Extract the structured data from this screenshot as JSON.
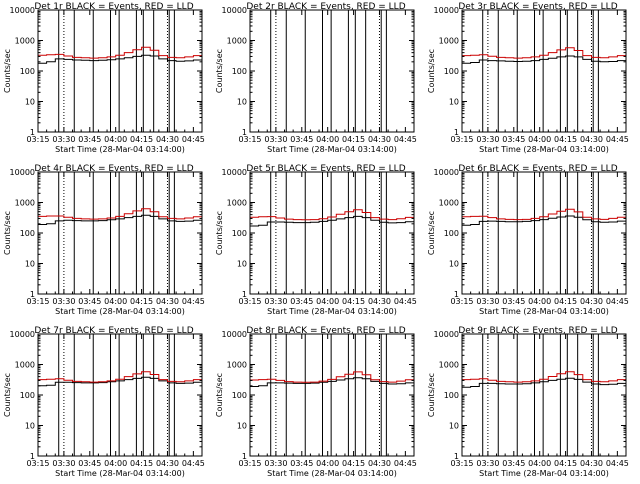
{
  "figure": {
    "x_ticks": [
      "03:15",
      "03:30",
      "03:45",
      "04:00",
      "04:15",
      "04:30",
      "04:45"
    ],
    "y_ticks": [
      "1",
      "10",
      "100",
      "1000",
      "10000"
    ],
    "colors": {
      "events": "#000000",
      "lld": "#cc0000",
      "axis": "#000000"
    }
  },
  "chart_data": [
    {
      "type": "line",
      "panel": "det1r",
      "title": "Det 1r BLACK = Events, RED = LLD",
      "xlabel": "Start Time (28-Mar-04 03:14:00)",
      "ylabel": "Counts/sec",
      "yscale": "log",
      "ylim": [
        1,
        10000
      ],
      "xlim": [
        "03:15",
        "04:50"
      ],
      "x": [
        "03:15",
        "03:20",
        "03:25",
        "03:30",
        "03:35",
        "03:40",
        "03:45",
        "03:50",
        "03:55",
        "04:00",
        "04:05",
        "04:10",
        "04:15",
        "04:20",
        "04:25",
        "04:30",
        "04:35",
        "04:40",
        "04:45",
        "04:50"
      ],
      "series": [
        {
          "name": "Events",
          "color": "#000000",
          "values": [
            180,
            200,
            250,
            240,
            230,
            225,
            220,
            225,
            235,
            250,
            270,
            300,
            330,
            310,
            250,
            220,
            210,
            215,
            230,
            240
          ]
        },
        {
          "name": "LLD",
          "color": "#cc0000",
          "values": [
            330,
            340,
            350,
            310,
            280,
            270,
            265,
            270,
            290,
            330,
            400,
            500,
            600,
            480,
            320,
            280,
            270,
            290,
            320,
            350
          ]
        }
      ],
      "dotted_lines": [
        "03:30",
        "04:30"
      ],
      "gap_lines": [
        "03:27",
        "03:36",
        "03:47",
        "03:57",
        "04:02",
        "04:12",
        "04:16",
        "04:22",
        "04:31",
        "04:34"
      ]
    },
    {
      "type": "line",
      "panel": "det2r",
      "title": "Det 2r BLACK = Events, RED = LLD",
      "xlabel": "Start Time (28-Mar-04 03:14:00)",
      "ylabel": "Counts/sec",
      "yscale": "log",
      "ylim": [
        1,
        10000
      ],
      "xlim": [
        "03:15",
        "04:50"
      ],
      "x": [
        "03:15",
        "03:20",
        "03:25",
        "03:30",
        "03:35",
        "03:40",
        "03:45",
        "03:50",
        "03:55",
        "04:00",
        "04:05",
        "04:10",
        "04:15",
        "04:20",
        "04:25",
        "04:30",
        "04:35",
        "04:40",
        "04:45",
        "04:50"
      ],
      "series": [
        {
          "name": "Events",
          "color": "#000000",
          "values": [
            null,
            null,
            null,
            null,
            null,
            null,
            null,
            null,
            null,
            null,
            null,
            null,
            null,
            null,
            null,
            null,
            null,
            null,
            null,
            null
          ]
        },
        {
          "name": "LLD",
          "color": "#cc0000",
          "values": [
            null,
            null,
            null,
            null,
            null,
            null,
            null,
            null,
            null,
            null,
            null,
            null,
            null,
            null,
            null,
            null,
            null,
            null,
            null,
            null
          ]
        }
      ],
      "dotted_lines": [
        "03:30",
        "04:30"
      ],
      "gap_lines": [
        "03:27",
        "03:36",
        "03:47",
        "03:57",
        "04:02",
        "04:12",
        "04:16",
        "04:22",
        "04:31",
        "04:34"
      ]
    },
    {
      "type": "line",
      "panel": "det3r",
      "title": "Det 3r BLACK = Events, RED = LLD",
      "xlabel": "Start Time (28-Mar-04 03:14:00)",
      "ylabel": "Counts/sec",
      "yscale": "log",
      "ylim": [
        1,
        10000
      ],
      "xlim": [
        "03:15",
        "04:50"
      ],
      "x": [
        "03:15",
        "03:20",
        "03:25",
        "03:30",
        "03:35",
        "03:40",
        "03:45",
        "03:50",
        "03:55",
        "04:00",
        "04:05",
        "04:10",
        "04:15",
        "04:20",
        "04:25",
        "04:30",
        "04:35",
        "04:40",
        "04:45",
        "04:50"
      ],
      "series": [
        {
          "name": "Events",
          "color": "#000000",
          "values": [
            180,
            190,
            230,
            220,
            215,
            210,
            205,
            210,
            220,
            240,
            260,
            290,
            310,
            290,
            240,
            210,
            200,
            205,
            220,
            230
          ]
        },
        {
          "name": "LLD",
          "color": "#cc0000",
          "values": [
            320,
            330,
            340,
            305,
            280,
            270,
            265,
            270,
            290,
            330,
            400,
            490,
            580,
            470,
            320,
            280,
            270,
            290,
            320,
            340
          ]
        }
      ],
      "dotted_lines": [
        "03:30",
        "04:30"
      ],
      "gap_lines": [
        "03:27",
        "03:36",
        "03:47",
        "03:57",
        "04:02",
        "04:12",
        "04:16",
        "04:22",
        "04:31",
        "04:34"
      ]
    },
    {
      "type": "line",
      "panel": "det4r",
      "title": "Det 4r BLACK = Events, RED = LLD",
      "xlabel": "Start Time (28-Mar-04 03:14:00)",
      "ylabel": "Counts/sec",
      "yscale": "log",
      "ylim": [
        1,
        10000
      ],
      "xlim": [
        "03:15",
        "04:50"
      ],
      "x": [
        "03:15",
        "03:20",
        "03:25",
        "03:30",
        "03:35",
        "03:40",
        "03:45",
        "03:50",
        "03:55",
        "04:00",
        "04:05",
        "04:10",
        "04:15",
        "04:20",
        "04:25",
        "04:30",
        "04:35",
        "04:40",
        "04:45",
        "04:50"
      ],
      "series": [
        {
          "name": "Events",
          "color": "#000000",
          "values": [
            190,
            200,
            250,
            260,
            255,
            250,
            250,
            255,
            270,
            290,
            320,
            350,
            380,
            350,
            290,
            250,
            240,
            245,
            260,
            270
          ]
        },
        {
          "name": "LLD",
          "color": "#cc0000",
          "values": [
            350,
            360,
            360,
            330,
            300,
            290,
            285,
            290,
            310,
            350,
            430,
            530,
            620,
            500,
            340,
            300,
            290,
            310,
            340,
            360
          ]
        }
      ],
      "dotted_lines": [
        "03:30",
        "04:30"
      ],
      "gap_lines": [
        "03:27",
        "03:36",
        "03:47",
        "03:57",
        "04:02",
        "04:12",
        "04:16",
        "04:22",
        "04:31",
        "04:34"
      ]
    },
    {
      "type": "line",
      "panel": "det5r",
      "title": "Det 5r BLACK = Events, RED = LLD",
      "xlabel": "Start Time (28-Mar-04 03:14:00)",
      "ylabel": "Counts/sec",
      "yscale": "log",
      "ylim": [
        1,
        10000
      ],
      "xlim": [
        "03:15",
        "04:50"
      ],
      "x": [
        "03:15",
        "03:20",
        "03:25",
        "03:30",
        "03:35",
        "03:40",
        "03:45",
        "03:50",
        "03:55",
        "04:00",
        "04:05",
        "04:10",
        "04:15",
        "04:20",
        "04:25",
        "04:30",
        "04:35",
        "04:40",
        "04:45",
        "04:50"
      ],
      "series": [
        {
          "name": "Events",
          "color": "#000000",
          "values": [
            170,
            180,
            230,
            230,
            225,
            220,
            220,
            225,
            240,
            260,
            290,
            320,
            350,
            320,
            260,
            225,
            215,
            220,
            235,
            245
          ]
        },
        {
          "name": "LLD",
          "color": "#cc0000",
          "values": [
            330,
            340,
            345,
            310,
            285,
            275,
            270,
            275,
            295,
            335,
            410,
            500,
            580,
            470,
            320,
            285,
            275,
            295,
            325,
            345
          ]
        }
      ],
      "dotted_lines": [
        "03:30",
        "04:30"
      ],
      "gap_lines": [
        "03:27",
        "03:36",
        "03:47",
        "03:57",
        "04:02",
        "04:12",
        "04:16",
        "04:22",
        "04:31",
        "04:34"
      ]
    },
    {
      "type": "line",
      "panel": "det6r",
      "title": "Det 6r BLACK = Events, RED = LLD",
      "xlabel": "Start Time (28-Mar-04 03:14:00)",
      "ylabel": "Counts/sec",
      "yscale": "log",
      "ylim": [
        1,
        10000
      ],
      "xlim": [
        "03:15",
        "04:50"
      ],
      "x": [
        "03:15",
        "03:20",
        "03:25",
        "03:30",
        "03:35",
        "03:40",
        "03:45",
        "03:50",
        "03:55",
        "04:00",
        "04:05",
        "04:10",
        "04:15",
        "04:20",
        "04:25",
        "04:30",
        "04:35",
        "04:40",
        "04:45",
        "04:50"
      ],
      "series": [
        {
          "name": "Events",
          "color": "#000000",
          "values": [
            180,
            190,
            240,
            245,
            240,
            235,
            235,
            240,
            255,
            275,
            305,
            335,
            360,
            330,
            270,
            235,
            225,
            230,
            245,
            255
          ]
        },
        {
          "name": "LLD",
          "color": "#cc0000",
          "values": [
            340,
            350,
            355,
            320,
            290,
            280,
            275,
            280,
            300,
            340,
            420,
            520,
            600,
            490,
            330,
            290,
            280,
            300,
            330,
            350
          ]
        }
      ],
      "dotted_lines": [
        "03:30",
        "04:30"
      ],
      "gap_lines": [
        "03:27",
        "03:36",
        "03:47",
        "03:57",
        "04:02",
        "04:12",
        "04:16",
        "04:22",
        "04:31",
        "04:34"
      ]
    },
    {
      "type": "line",
      "panel": "det7r",
      "title": "Det 7r BLACK = Events, RED = LLD",
      "xlabel": "Start Time (28-Mar-04 03:14:00)",
      "ylabel": "Counts/sec",
      "yscale": "log",
      "ylim": [
        1,
        10000
      ],
      "xlim": [
        "03:15",
        "04:50"
      ],
      "x": [
        "03:15",
        "03:20",
        "03:25",
        "03:30",
        "03:35",
        "03:40",
        "03:45",
        "03:50",
        "03:55",
        "04:00",
        "04:05",
        "04:10",
        "04:15",
        "04:20",
        "04:25",
        "04:30",
        "04:35",
        "04:40",
        "04:45",
        "04:50"
      ],
      "series": [
        {
          "name": "Events",
          "color": "#000000",
          "values": [
            200,
            210,
            260,
            260,
            255,
            250,
            250,
            255,
            270,
            290,
            320,
            350,
            380,
            350,
            290,
            250,
            240,
            245,
            260,
            270
          ]
        },
        {
          "name": "LLD",
          "color": "#cc0000",
          "values": [
            320,
            330,
            340,
            305,
            280,
            270,
            265,
            270,
            290,
            330,
            400,
            490,
            580,
            470,
            320,
            280,
            270,
            290,
            320,
            340
          ]
        }
      ],
      "dotted_lines": [
        "03:30",
        "04:30"
      ],
      "gap_lines": [
        "03:27",
        "03:36",
        "03:47",
        "03:57",
        "04:02",
        "04:12",
        "04:16",
        "04:22",
        "04:31",
        "04:34"
      ]
    },
    {
      "type": "line",
      "panel": "det8r",
      "title": "Det 8r BLACK = Events, RED = LLD",
      "xlabel": "Start Time (28-Mar-04 03:14:00)",
      "ylabel": "Counts/sec",
      "yscale": "log",
      "ylim": [
        1,
        10000
      ],
      "xlim": [
        "03:15",
        "04:50"
      ],
      "x": [
        "03:15",
        "03:20",
        "03:25",
        "03:30",
        "03:35",
        "03:40",
        "03:45",
        "03:50",
        "03:55",
        "04:00",
        "04:05",
        "04:10",
        "04:15",
        "04:20",
        "04:25",
        "04:30",
        "04:35",
        "04:40",
        "04:45",
        "04:50"
      ],
      "series": [
        {
          "name": "Events",
          "color": "#000000",
          "values": [
            190,
            200,
            250,
            250,
            245,
            240,
            240,
            245,
            260,
            280,
            310,
            340,
            370,
            340,
            280,
            240,
            230,
            235,
            250,
            260
          ]
        },
        {
          "name": "LLD",
          "color": "#cc0000",
          "values": [
            310,
            320,
            330,
            300,
            275,
            265,
            260,
            265,
            285,
            325,
            395,
            480,
            570,
            460,
            315,
            275,
            265,
            285,
            315,
            335
          ]
        }
      ],
      "dotted_lines": [
        "03:30",
        "04:30"
      ],
      "gap_lines": [
        "03:27",
        "03:36",
        "03:47",
        "03:57",
        "04:02",
        "04:12",
        "04:16",
        "04:22",
        "04:31",
        "04:34"
      ]
    },
    {
      "type": "line",
      "panel": "det9r",
      "title": "Det 9r BLACK = Events, RED = LLD",
      "xlabel": "Start Time (28-Mar-04 03:14:00)",
      "ylabel": "Counts/sec",
      "yscale": "log",
      "ylim": [
        1,
        10000
      ],
      "xlim": [
        "03:15",
        "04:50"
      ],
      "x": [
        "03:15",
        "03:20",
        "03:25",
        "03:30",
        "03:35",
        "03:40",
        "03:45",
        "03:50",
        "03:55",
        "04:00",
        "04:05",
        "04:10",
        "04:15",
        "04:20",
        "04:25",
        "04:30",
        "04:35",
        "04:40",
        "04:45",
        "04:50"
      ],
      "series": [
        {
          "name": "Events",
          "color": "#000000",
          "values": [
            180,
            190,
            240,
            240,
            235,
            230,
            230,
            235,
            250,
            270,
            300,
            330,
            355,
            325,
            265,
            230,
            220,
            225,
            240,
            250
          ]
        },
        {
          "name": "LLD",
          "color": "#cc0000",
          "values": [
            320,
            330,
            340,
            305,
            280,
            270,
            265,
            270,
            290,
            330,
            405,
            495,
            575,
            465,
            320,
            280,
            270,
            290,
            320,
            340
          ]
        }
      ],
      "dotted_lines": [
        "03:30",
        "04:30"
      ],
      "gap_lines": [
        "03:27",
        "03:36",
        "03:47",
        "03:57",
        "04:02",
        "04:12",
        "04:16",
        "04:22",
        "04:31",
        "04:34"
      ]
    }
  ]
}
